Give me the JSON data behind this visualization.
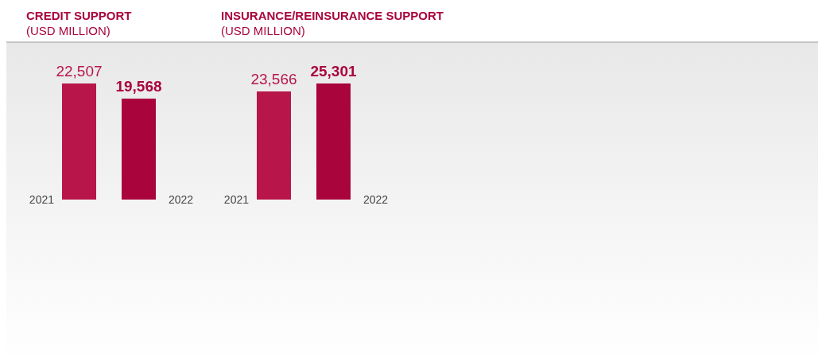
{
  "chart_data": [
    {
      "type": "bar",
      "title": "CREDIT SUPPORT",
      "subtitle": "(USD MILLION)",
      "categories": [
        "2021",
        "2022"
      ],
      "values": [
        22507,
        19568
      ],
      "colors": [
        "#b8154a",
        "#a9053c"
      ],
      "value_labels": [
        "22,507",
        "19,568"
      ]
    },
    {
      "type": "bar",
      "title": "INSURANCE/REINSURANCE SUPPORT",
      "subtitle": "(USD MILLION)",
      "categories": [
        "2021",
        "2022"
      ],
      "values": [
        23566,
        25301
      ],
      "colors": [
        "#b8154a",
        "#a9053c"
      ],
      "value_labels": [
        "23,566",
        "25,301"
      ]
    }
  ]
}
